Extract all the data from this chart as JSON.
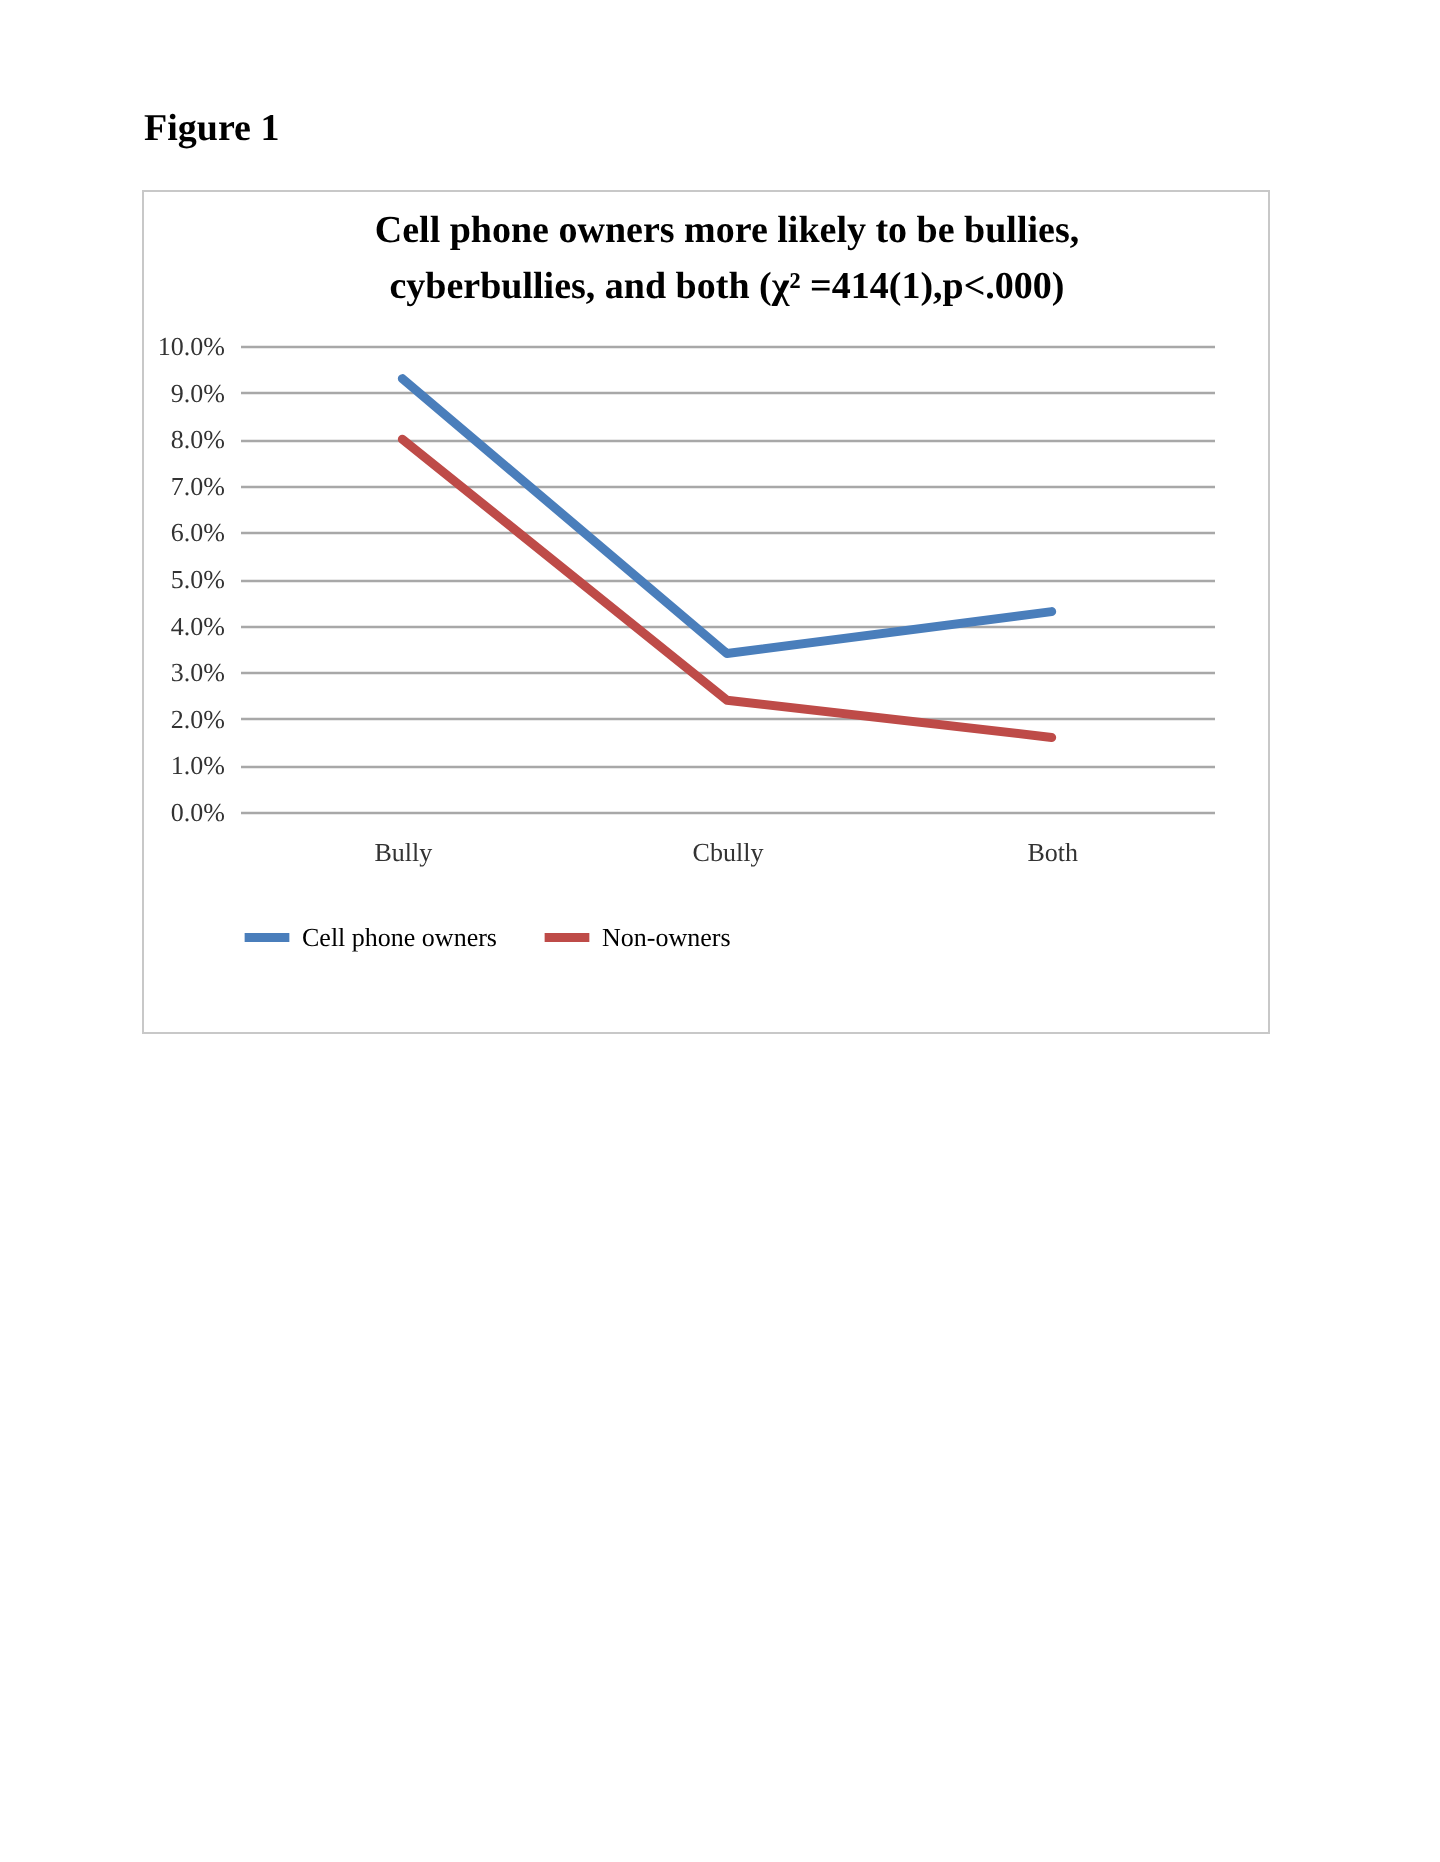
{
  "chart_data": {
    "type": "line",
    "title": "Cell phone owners more likely to be bullies, cyberbullies, and both (χ² =414(1),p<.000)",
    "annotations": [
      "Figure 1"
    ],
    "categories": [
      "Bully",
      "Cbully",
      "Both"
    ],
    "series": [
      {
        "name": "Cell phone owners",
        "color": "#4a7ebb",
        "values": [
          9.3,
          3.4,
          4.3
        ]
      },
      {
        "name": "Non-owners",
        "color": "#be4b48",
        "values": [
          8.0,
          2.4,
          1.6
        ]
      }
    ],
    "ylim": [
      0,
      10
    ],
    "yticks": [
      {
        "value": 0,
        "label": "0.0%"
      },
      {
        "value": 1,
        "label": "1.0%"
      },
      {
        "value": 2,
        "label": "2.0%"
      },
      {
        "value": 3,
        "label": "3.0%"
      },
      {
        "value": 4,
        "label": "4.0%"
      },
      {
        "value": 5,
        "label": "5.0%"
      },
      {
        "value": 6,
        "label": "6.0%"
      },
      {
        "value": 7,
        "label": "7.0%"
      },
      {
        "value": 8,
        "label": "8.0%"
      },
      {
        "value": 9,
        "label": "9.0%"
      },
      {
        "value": 10,
        "label": "10.0%"
      }
    ],
    "grid": "y",
    "legend": "bottom",
    "marker": "none",
    "line_style": "solid"
  }
}
